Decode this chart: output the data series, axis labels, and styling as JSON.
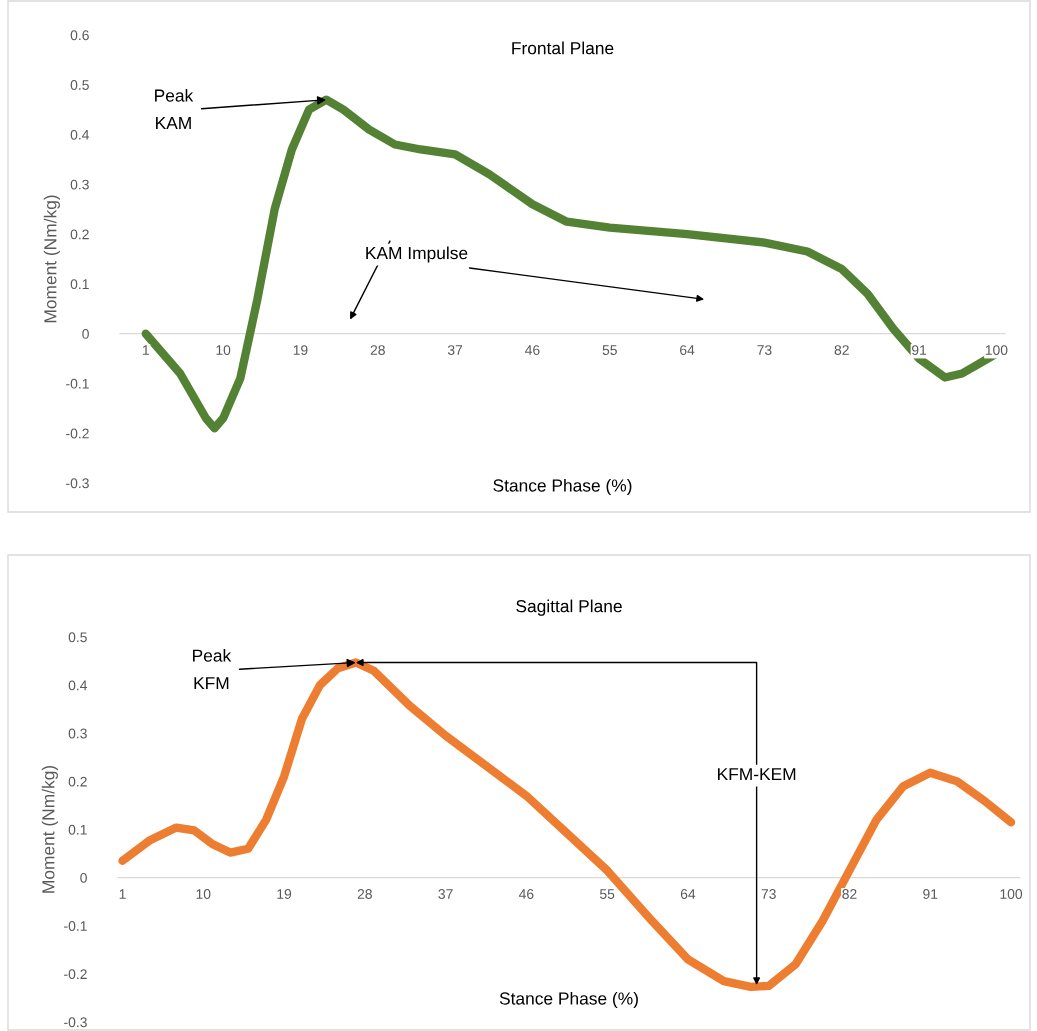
{
  "chart_data": [
    {
      "type": "line",
      "title": "Frontal Plane",
      "xlabel": "Stance Phase (%)",
      "ylabel": "Moment (Nm/kg)",
      "xlim": [
        -2,
        101
      ],
      "xticks": [
        1,
        10,
        19,
        28,
        37,
        46,
        55,
        64,
        73,
        82,
        91,
        100
      ],
      "ylim": [
        -0.3,
        0.6
      ],
      "yticks": [
        -0.3,
        -0.2,
        -0.1,
        0,
        0.1,
        0.2,
        0.3,
        0.4,
        0.5,
        0.6
      ],
      "x": [
        1,
        5,
        8,
        9,
        10,
        12,
        14,
        16,
        18,
        20,
        22,
        24,
        27,
        30,
        33,
        37,
        41,
        46,
        50,
        55,
        64,
        73,
        78,
        82,
        85,
        88,
        91,
        94,
        96,
        98,
        100
      ],
      "series": [
        {
          "color": "#548235",
          "values": [
            0.0,
            -0.08,
            -0.17,
            -0.19,
            -0.17,
            -0.09,
            0.07,
            0.25,
            0.37,
            0.45,
            0.47,
            0.45,
            0.41,
            0.38,
            0.37,
            0.36,
            0.32,
            0.26,
            0.225,
            0.213,
            0.2,
            0.183,
            0.165,
            0.13,
            0.08,
            0.01,
            -0.05,
            -0.088,
            -0.08,
            -0.06,
            -0.04
          ]
        }
      ],
      "annotations": [
        {
          "text": "Peak\nKAM",
          "x": 22,
          "y": 0.47
        },
        "KAM Impulse"
      ]
    },
    {
      "type": "line",
      "title": "Sagittal Plane",
      "xlabel": "Stance Phase (%)",
      "ylabel": "Moment (Nm/kg)",
      "xlim": [
        0.5,
        101
      ],
      "xticks": [
        1,
        10,
        19,
        28,
        37,
        46,
        55,
        64,
        73,
        82,
        91,
        100
      ],
      "ylim": [
        -0.3,
        0.5
      ],
      "yticks": [
        -0.3,
        -0.2,
        -0.1,
        0,
        0.1,
        0.2,
        0.3,
        0.4,
        0.5
      ],
      "x": [
        1,
        4,
        7,
        9,
        11,
        13,
        15,
        17,
        19,
        21,
        23,
        25,
        27,
        29,
        33,
        37,
        46,
        55,
        60,
        64,
        68,
        71,
        73,
        76,
        79,
        82,
        85,
        88,
        91,
        94,
        97,
        100
      ],
      "series": [
        {
          "color": "#ed7d31",
          "values": [
            0.035,
            0.077,
            0.104,
            0.098,
            0.07,
            0.052,
            0.06,
            0.12,
            0.21,
            0.33,
            0.4,
            0.435,
            0.447,
            0.43,
            0.357,
            0.295,
            0.17,
            0.015,
            -0.09,
            -0.17,
            -0.215,
            -0.227,
            -0.225,
            -0.18,
            -0.09,
            0.015,
            0.12,
            0.19,
            0.218,
            0.2,
            0.16,
            0.115
          ]
        }
      ],
      "annotations": [
        {
          "text": "Peak\nKFM",
          "x": 27,
          "y": 0.447
        },
        "KFM-KEM"
      ]
    }
  ]
}
